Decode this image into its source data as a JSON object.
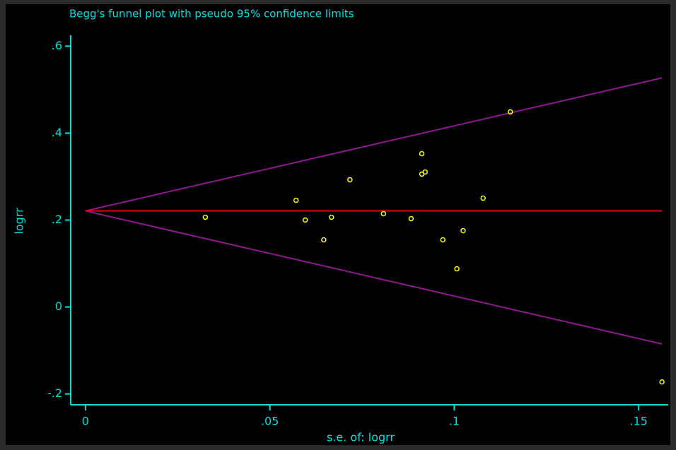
{
  "chart_data": {
    "type": "scatter",
    "title": "Begg's funnel plot with pseudo 95% confidence limits",
    "x_label": "s.e. of: logrr",
    "y_label": "logrr",
    "xlim": [
      -0.004,
      0.158
    ],
    "ylim": [
      -0.225,
      0.625
    ],
    "xticks": [
      0,
      {
        "value": 0.05,
        "label": ".05"
      },
      {
        "value": 0.1,
        "label": ".1"
      },
      {
        "value": 0.15,
        "label": ".15"
      }
    ],
    "yticks": [
      {
        "value": -0.2,
        "label": "-.2"
      },
      0,
      {
        "value": 0.2,
        "label": ".2"
      },
      {
        "value": 0.4,
        "label": ".4"
      },
      {
        "value": 0.6,
        "label": ".6"
      }
    ],
    "grid": false,
    "points": {
      "color": "#ffff00",
      "x": [
        0.0325,
        0.0571,
        0.0596,
        0.0646,
        0.0667,
        0.0717,
        0.0808,
        0.0883,
        0.0912,
        0.0912,
        0.0921,
        0.0969,
        0.1007,
        0.1024,
        0.1078,
        0.1152,
        0.1563
      ],
      "y": [
        0.2065,
        0.2455,
        0.2,
        0.1545,
        0.2065,
        0.2927,
        0.2146,
        0.2033,
        0.3528,
        0.3057,
        0.3106,
        0.1545,
        0.0878,
        0.1756,
        0.2504,
        0.4488,
        -0.1724
      ]
    },
    "lines": [
      {
        "color": "#8b1a8b",
        "x": [
          0,
          0.1563
        ],
        "y": [
          0.221,
          0.527
        ]
      },
      {
        "color": "#8b1a8b",
        "x": [
          0,
          0.1563
        ],
        "y": [
          0.221,
          -0.085
        ]
      },
      {
        "color": "#e00000",
        "x": [
          0,
          0.1563
        ],
        "y": [
          0.221,
          0.221
        ]
      }
    ]
  }
}
